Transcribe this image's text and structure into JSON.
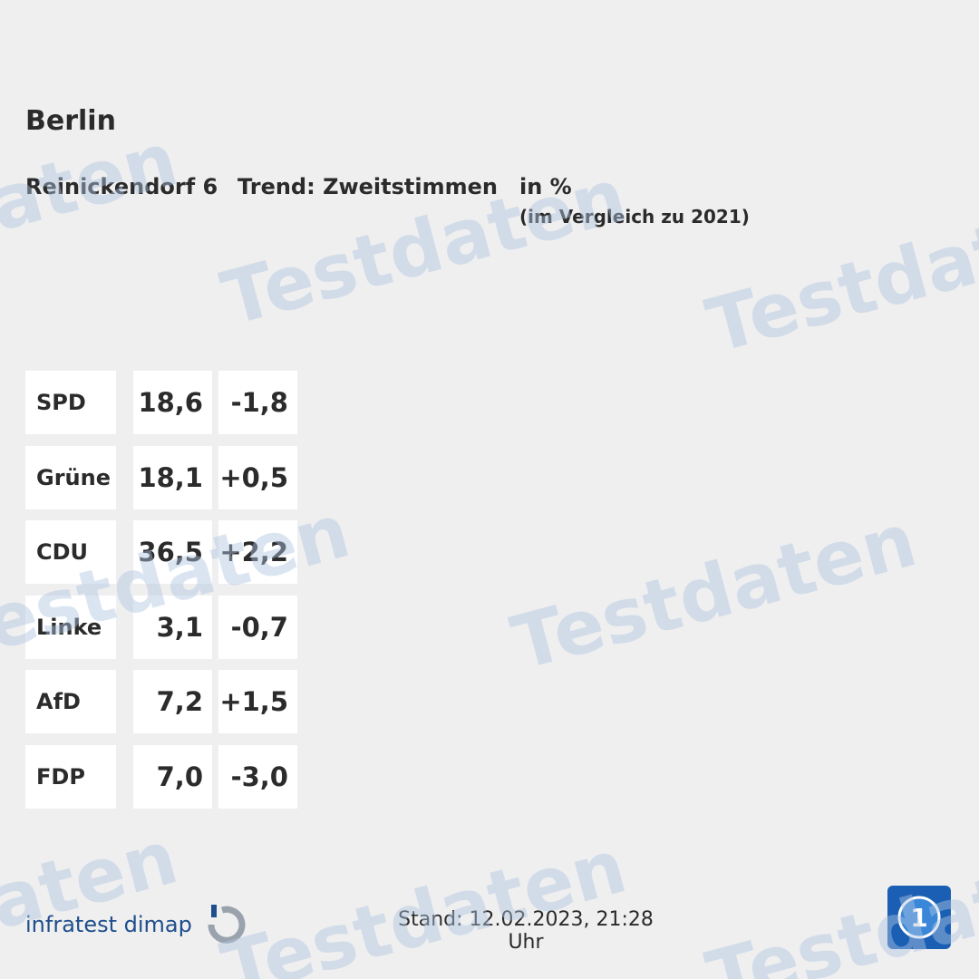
{
  "header": {
    "title": "Berlin",
    "district": "Reinickendorf 6",
    "trend": "Trend: Zweitstimmen",
    "unit": "in %",
    "comparison": "(im Vergleich zu 2021)"
  },
  "table": {
    "rows": [
      [
        "SPD",
        "18,6",
        "-1,8"
      ],
      [
        "Grüne",
        "18,1",
        "+0,5"
      ],
      [
        "CDU",
        "36,5",
        "+2,2"
      ],
      [
        "Linke",
        "3,1",
        "-0,7"
      ],
      [
        "AfD",
        "7,2",
        "+1,5"
      ],
      [
        "FDP",
        "7,0",
        "-3,0"
      ]
    ]
  },
  "footer": {
    "source": "infratest dimap",
    "timestamp": "Stand: 12.02.2023, 21:28 Uhr"
  },
  "watermark": "Testdaten"
}
